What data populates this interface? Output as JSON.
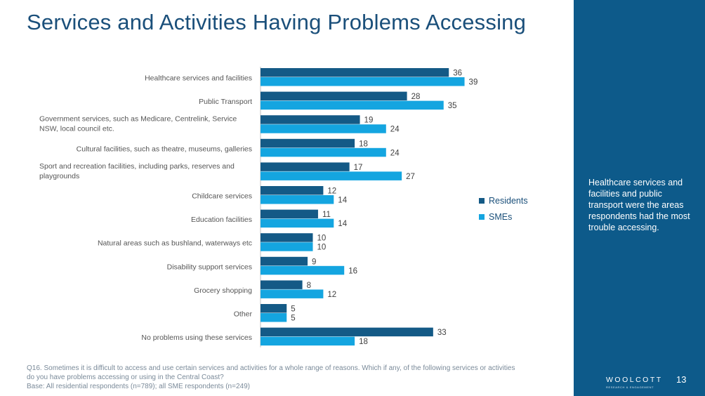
{
  "page": {
    "title": "Services and Activities Having Problems Accessing",
    "footnote_lines": [
      "Q16. Sometimes it is difficult to access and use certain services and activities for a whole range of reasons. Which if any, of the following services or activities",
      "do you have problems accessing or using in the Central Coast?",
      "Base:  All residential respondents (n=789); all SME respondents (n=249)"
    ],
    "panel_text": "Healthcare services and facilities and public transport were the areas respondents had the most trouble accessing.",
    "brand": "WOOLCOTT",
    "brand_sub": "RESEARCH & ENGAGEMENT",
    "page_number": "13"
  },
  "colors": {
    "residents": "#145a86",
    "smes": "#14a5e0",
    "panel": "#0d5a8a",
    "title": "#1a4f7a"
  },
  "chart_data": {
    "type": "bar",
    "orientation": "horizontal",
    "categories": [
      [
        "Healthcare services and facilities"
      ],
      [
        "Public Transport"
      ],
      [
        "Government services, such as Medicare, Centrelink, Service",
        "NSW, local council etc."
      ],
      [
        "Cultural facilities, such as theatre, museums, galleries"
      ],
      [
        "Sport and recreation facilities, including parks, reserves and",
        "playgrounds"
      ],
      [
        "Childcare services"
      ],
      [
        "Education facilities"
      ],
      [
        "Natural areas such as bushland, waterways etc"
      ],
      [
        "Disability support services"
      ],
      [
        "Grocery shopping"
      ],
      [
        "Other"
      ],
      [
        "No problems using these services"
      ]
    ],
    "series": [
      {
        "name": "Residents",
        "values": [
          36,
          28,
          19,
          18,
          17,
          12,
          11,
          10,
          9,
          8,
          5,
          33
        ]
      },
      {
        "name": "SMEs",
        "values": [
          39,
          35,
          24,
          24,
          27,
          14,
          14,
          10,
          16,
          12,
          5,
          18
        ]
      }
    ],
    "legend_position": "right",
    "data_labels": true,
    "grid": false
  }
}
